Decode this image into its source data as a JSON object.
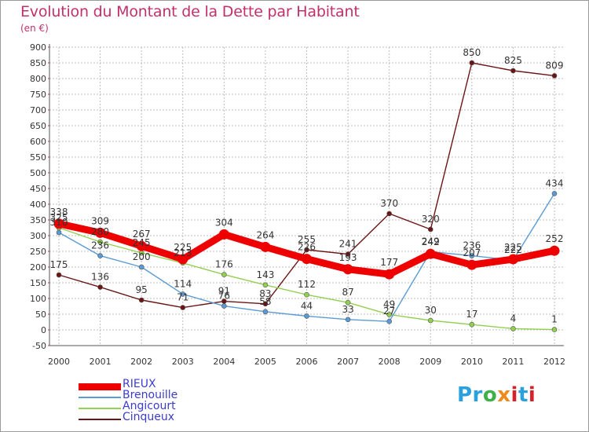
{
  "header": {
    "title": "Evolution du Montant de la Dette par Habitant",
    "subtitle": "(en €)"
  },
  "logo": {
    "text": "Proxiti",
    "colors": [
      "#2aa0dc",
      "#3fb14a",
      "#f08a1c",
      "#d8202a"
    ]
  },
  "colors": {
    "title": "#c2306b",
    "legend_text": "#3b3bd1",
    "grid": "#bdbdbd",
    "axis_text": "#333333"
  },
  "chart_data": {
    "type": "line",
    "title": "Evolution du Montant de la Dette par Habitant",
    "subtitle": "(en €)",
    "xlabel": "",
    "ylabel": "",
    "x": [
      "2000",
      "2001",
      "2002",
      "2003",
      "2004",
      "2005",
      "2006",
      "2007",
      "2008",
      "2009",
      "2010",
      "2011",
      "2012"
    ],
    "ylim": [
      -50,
      900
    ],
    "yticks": [
      -50,
      0,
      50,
      100,
      150,
      200,
      250,
      300,
      350,
      400,
      450,
      500,
      550,
      600,
      650,
      700,
      750,
      800,
      850,
      900
    ],
    "grid": true,
    "legend_position": "bottom-left",
    "series": [
      {
        "name": "RIEUX",
        "color": "#ee0000",
        "emphasis": true,
        "values": [
          338,
          309,
          267,
          225,
          304,
          264,
          226,
          193,
          177,
          242,
          207,
          225,
          252
        ]
      },
      {
        "name": "Brenouille",
        "color": "#5b9bd5",
        "emphasis": false,
        "values": [
          310,
          236,
          200,
          114,
          76,
          58,
          44,
          33,
          27,
          249,
          236,
          222,
          434
        ]
      },
      {
        "name": "Angicourt",
        "color": "#92d050",
        "emphasis": false,
        "values": [
          325,
          280,
          245,
          213,
          176,
          143,
          112,
          87,
          49,
          30,
          17,
          4,
          1
        ]
      },
      {
        "name": "Cinqueux",
        "color": "#6b1414",
        "emphasis": false,
        "values": [
          175,
          136,
          95,
          71,
          91,
          83,
          255,
          241,
          370,
          320,
          850,
          825,
          809
        ]
      }
    ]
  }
}
